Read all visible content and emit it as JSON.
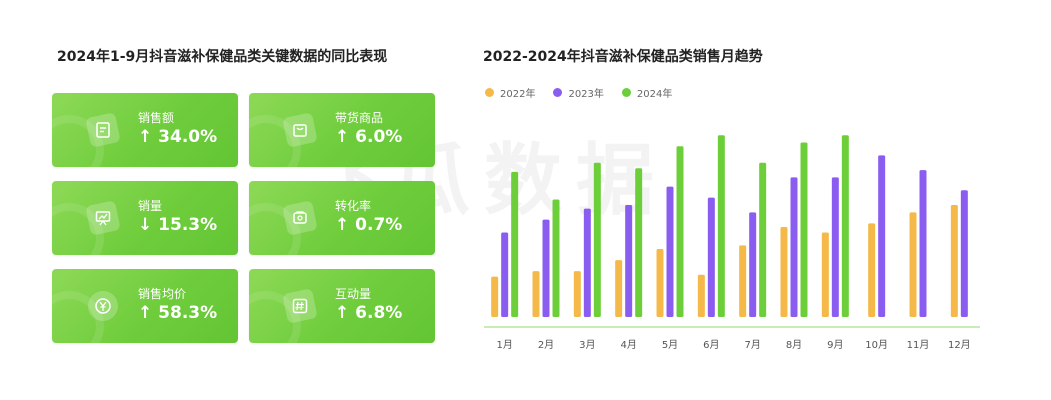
{
  "watermark": "飞瓜数据",
  "left": {
    "title": "2024年1-9月抖音滋补保健品类关键数据的同比表现",
    "cards": [
      {
        "label": "销售额",
        "value": "↑ 34.0%",
        "icon": "receipt-icon"
      },
      {
        "label": "带货商品",
        "value": "↑ 6.0%",
        "icon": "box-icon"
      },
      {
        "label": "销量",
        "value": "↓ 15.3%",
        "icon": "trend-board-icon"
      },
      {
        "label": "转化率",
        "value": "↑ 0.7%",
        "icon": "cart-icon"
      },
      {
        "label": "销售均价",
        "value": "↑ 58.3%",
        "icon": "yen-icon"
      },
      {
        "label": "互动量",
        "value": "↑ 6.8%",
        "icon": "hashtag-icon"
      }
    ]
  },
  "chart_data": {
    "type": "bar",
    "title": "2022-2024年抖音滋补保健品类销售月趋势",
    "categories": [
      "1月",
      "2月",
      "3月",
      "4月",
      "5月",
      "6月",
      "7月",
      "8月",
      "9月",
      "10月",
      "11月",
      "12月"
    ],
    "series": [
      {
        "name": "2022年",
        "color": "#f5b94a",
        "values": [
          22,
          25,
          25,
          31,
          37,
          23,
          39,
          49,
          46,
          51,
          57,
          61
        ]
      },
      {
        "name": "2023年",
        "color": "#8a5cf0",
        "values": [
          46,
          53,
          59,
          61,
          71,
          65,
          57,
          76,
          76,
          88,
          80,
          69
        ]
      },
      {
        "name": "2024年",
        "color": "#6ccf3a",
        "values": [
          79,
          64,
          84,
          81,
          93,
          99,
          84,
          95,
          99,
          null,
          null,
          null
        ]
      }
    ],
    "ylim": [
      0,
      110
    ],
    "grid": false,
    "legend_position": "top-left"
  }
}
